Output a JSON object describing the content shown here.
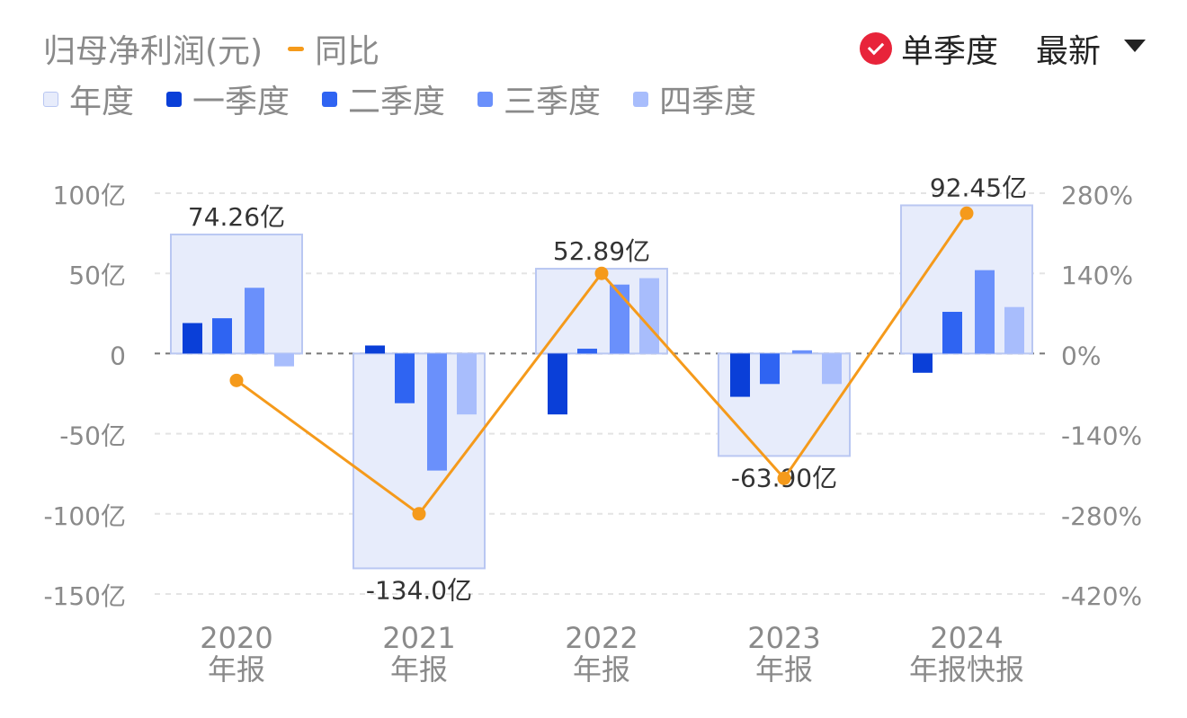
{
  "header": {
    "line_legend_label": "同比",
    "y_title": "归母净利润(元)",
    "toggle_label": "单季度",
    "toggle_checked": true,
    "dropdown_label": "最新"
  },
  "colors": {
    "annual": "#e7ecfb",
    "annual_border": "#b9c7f2",
    "q1": "#0a3fd8",
    "q2": "#2f64f2",
    "q3": "#6a90fb",
    "q4": "#a8bdfc",
    "yoy_line": "#f59a1b",
    "toggle_icon": "#e8243a"
  },
  "chart_data": {
    "type": "bar",
    "categories": [
      "2020\n年报",
      "2021\n年报",
      "2022\n年报",
      "2023\n年报",
      "2024\n年报快报"
    ],
    "category_lines": [
      [
        "2020",
        "年报"
      ],
      [
        "2021",
        "年报"
      ],
      [
        "2022",
        "年报"
      ],
      [
        "2023",
        "年报"
      ],
      [
        "2024",
        "年报快报"
      ]
    ],
    "legend": [
      "年度",
      "一季度",
      "二季度",
      "三季度",
      "四季度"
    ],
    "annual": [
      74.26,
      -134.0,
      52.89,
      -63.9,
      92.45
    ],
    "annual_labels": [
      "74.26亿",
      "-134.0亿",
      "52.89亿",
      "-63.90亿",
      "92.45亿"
    ],
    "quarters": [
      {
        "name": "一季度",
        "values": [
          19,
          5,
          -38,
          -27,
          -12
        ]
      },
      {
        "name": "二季度",
        "values": [
          22,
          -31,
          3,
          -19,
          26
        ]
      },
      {
        "name": "三季度",
        "values": [
          41,
          -73,
          43,
          2,
          52
        ]
      },
      {
        "name": "四季度",
        "values": [
          -8,
          -38,
          47,
          -19,
          29
        ]
      }
    ],
    "yoy": {
      "name": "同比",
      "values": [
        -47,
        -280,
        140,
        -218,
        245
      ]
    },
    "y_left": {
      "unit": "亿",
      "ticks": [
        100,
        50,
        0,
        -50,
        -100,
        -150
      ],
      "tick_labels": [
        "100亿",
        "50亿",
        "0",
        "-50亿",
        "-100亿",
        "-150亿"
      ],
      "range": [
        -150,
        100
      ]
    },
    "y_right": {
      "unit": "%",
      "ticks": [
        280,
        140,
        0,
        -140,
        -280,
        -420
      ],
      "tick_labels": [
        "280%",
        "140%",
        "0%",
        "-140%",
        "-280%",
        "-420%"
      ],
      "range": [
        -420,
        280
      ]
    },
    "grid": true,
    "legend_placement": "top-left"
  }
}
